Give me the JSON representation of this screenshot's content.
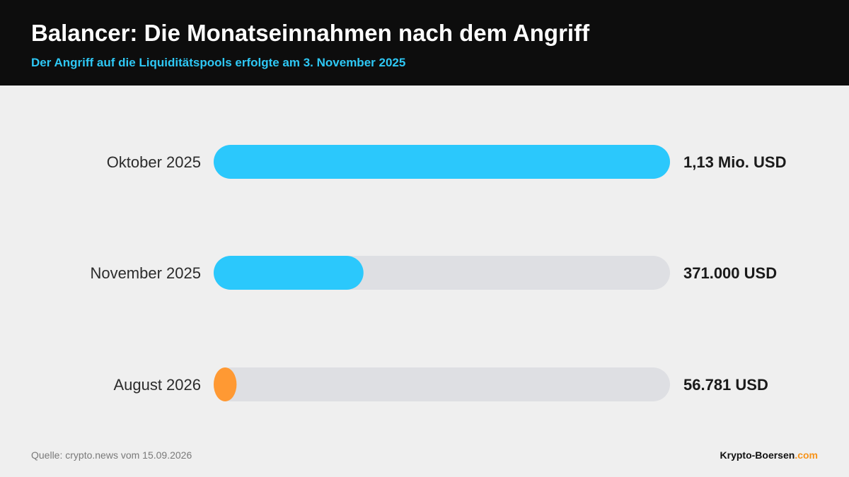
{
  "header": {
    "title": "Balancer: Die Monatseinnahmen nach dem Angriff",
    "subtitle": "Der Angriff auf die Liquiditätspools erfolgte am 3. November 2025"
  },
  "footer": {
    "source": "Quelle: crypto.news vom 15.09.2026",
    "brand_main": "Krypto-Boersen",
    "brand_suffix": ".com"
  },
  "colors": {
    "bar_primary": "#2bc8fc",
    "bar_highlight": "#ff9933",
    "track": "#dedfe3",
    "brand_accent": "#f7931a"
  },
  "chart_data": {
    "type": "bar",
    "orientation": "horizontal",
    "categories": [
      "Oktober 2025",
      "November 2025",
      "August 2026"
    ],
    "values": [
      1130000,
      371000,
      56781
    ],
    "value_labels": [
      "1,13 Mio. USD",
      "371.000 USD",
      "56.781 USD"
    ],
    "max": 1130000,
    "highlight_index": 2
  }
}
